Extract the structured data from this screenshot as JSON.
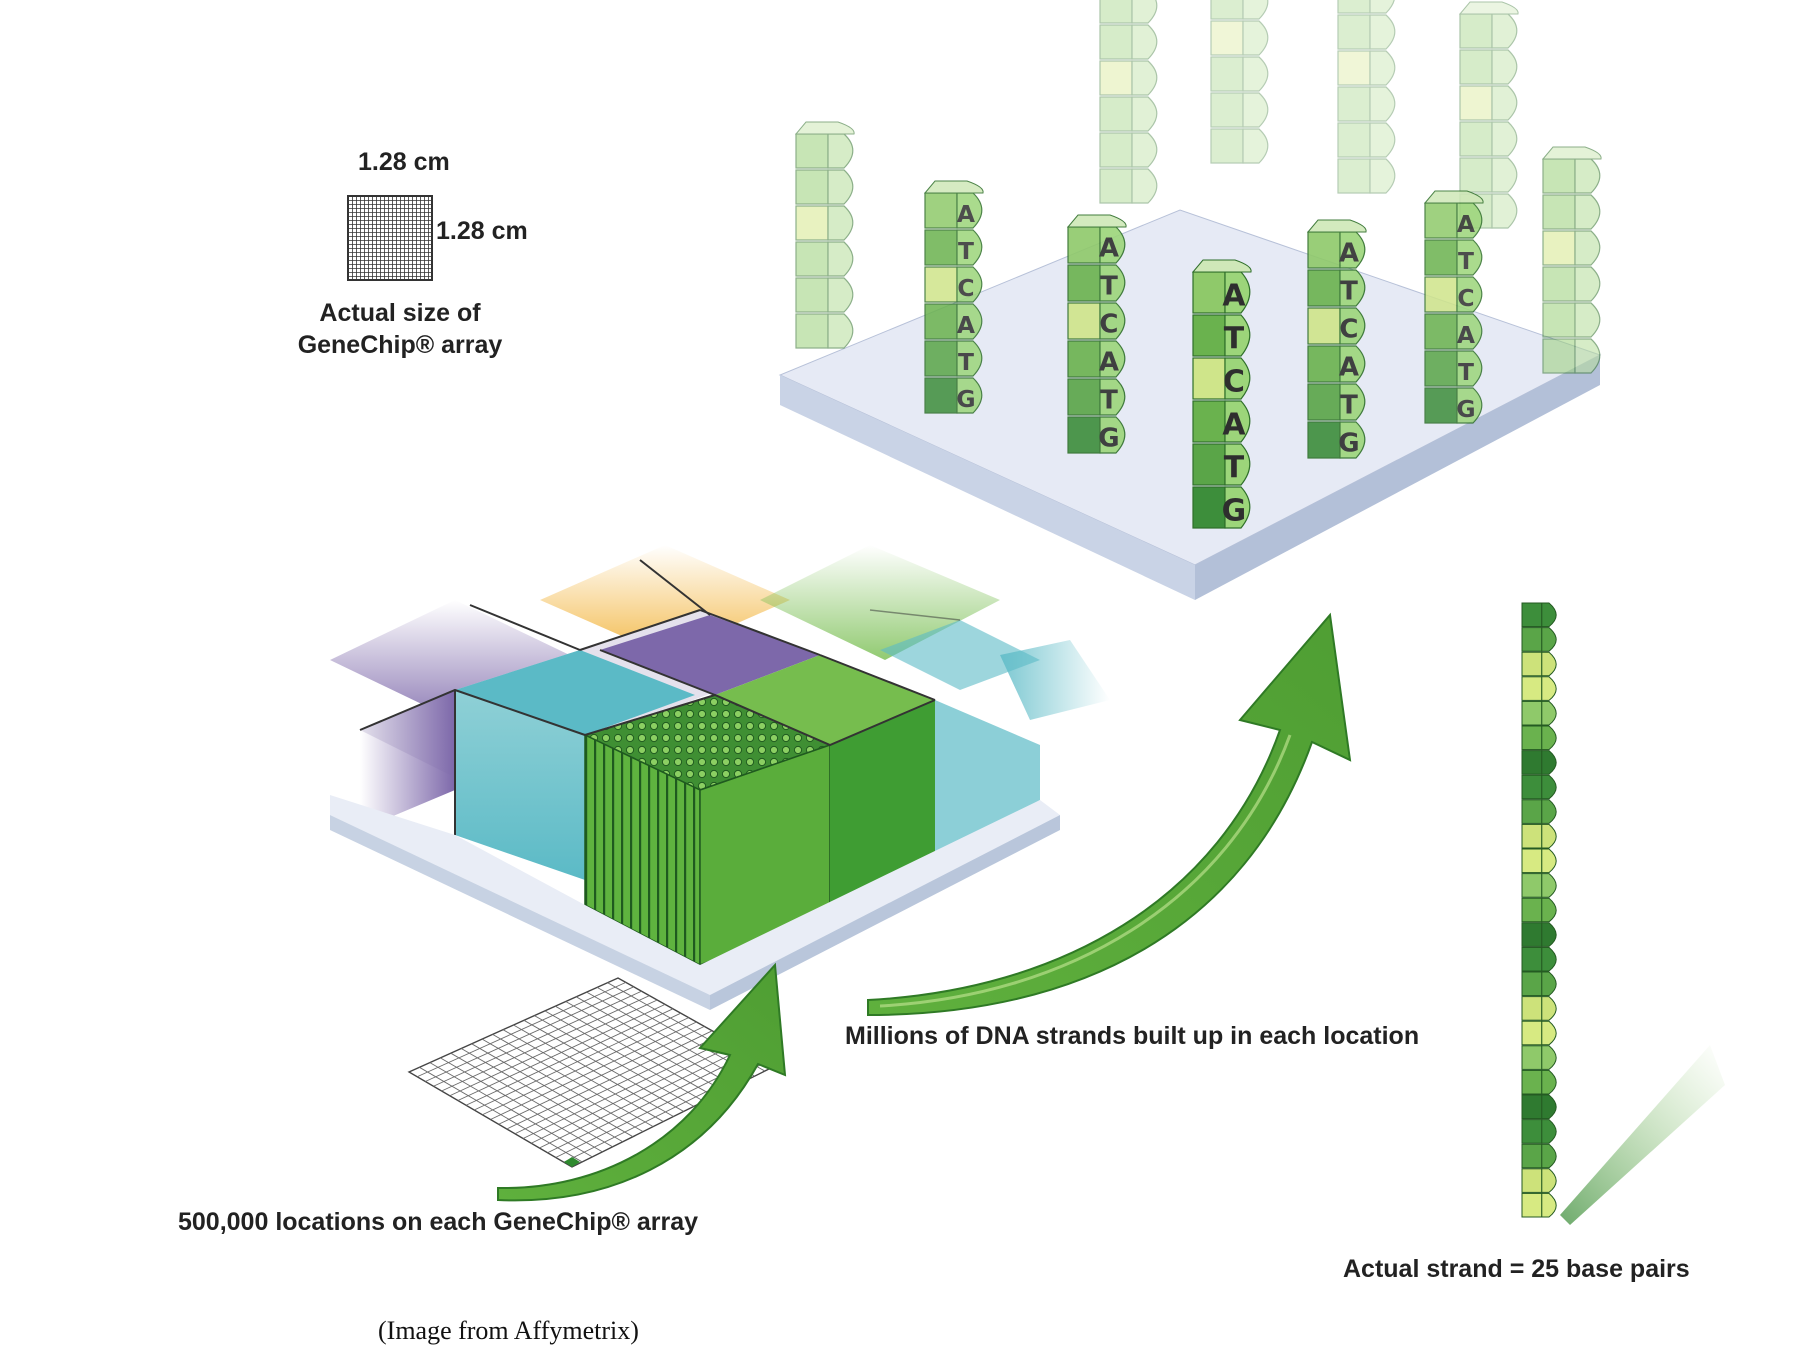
{
  "labels": {
    "chip_width": "1.28 cm",
    "chip_height": "1.28 cm",
    "actual_size_line1": "Actual size of",
    "actual_size_line2": "GeneChip® array",
    "locations": "500,000 locations on each GeneChip® array",
    "strands": "Millions of DNA strands built up in each location",
    "actual_strand": "Actual strand = 25 base pairs",
    "credit": "(Image from Affymetrix)"
  },
  "sequence": [
    "A",
    "T",
    "C",
    "A",
    "T",
    "G"
  ],
  "colors": {
    "slide_top": "#e9edf6",
    "slide_side": "#b9c6db",
    "cell_purple": "#7d68aa",
    "cell_teal": "#5bbac6",
    "cell_yellow": "#f2b43c",
    "cell_green": "#76bd4e",
    "arrow_green": "#5aac3a",
    "strand_dark": "#3d8e3b",
    "strand_mid": "#6ab24e",
    "strand_light": "#d7ea82"
  },
  "icons": {
    "mini_chip": "chip-grid-icon",
    "flat_grid": "locations-grid-icon",
    "arrows": "curved-arrow-icon"
  }
}
